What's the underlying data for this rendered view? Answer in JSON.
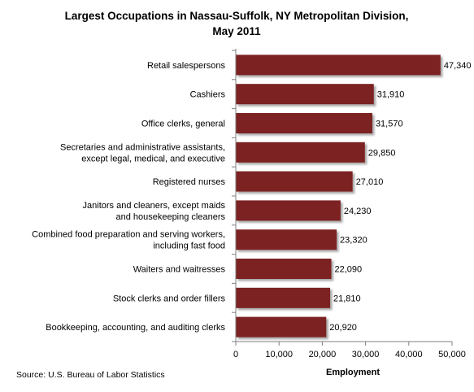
{
  "chart_data": {
    "type": "bar",
    "orientation": "horizontal",
    "title": [
      "Largest Occupations in Nassau-Suffolk, NY Metropolitan Division,",
      "May 2011"
    ],
    "xlabel": "Employment",
    "ylabel": "",
    "source": "Source: U.S. Bureau of Labor Statistics",
    "xlim": [
      0,
      50000
    ],
    "xticks": [
      {
        "value": 0,
        "label": "0"
      },
      {
        "value": 10000,
        "label": "10,000"
      },
      {
        "value": 20000,
        "label": "20,000"
      },
      {
        "value": 30000,
        "label": "30,000"
      },
      {
        "value": 40000,
        "label": "40,000"
      },
      {
        "value": 50000,
        "label": "50,000"
      }
    ],
    "grid": false,
    "bar_color": "#7b2222",
    "categories": [
      [
        "Retail salespersons"
      ],
      [
        "Cashiers"
      ],
      [
        "Office clerks, general"
      ],
      [
        "Secretaries and administrative  assistants,",
        "except legal, medical, and executive"
      ],
      [
        "Registered nurses"
      ],
      [
        "Janitors and cleaners, except maids",
        "and housekeeping cleaners"
      ],
      [
        "Combined food preparation and serving workers,",
        "including fast food"
      ],
      [
        "Waiters and waitresses"
      ],
      [
        "Stock clerks and order fillers"
      ],
      [
        "Bookkeeping, accounting, and auditing clerks"
      ]
    ],
    "values": [
      47340,
      31910,
      31570,
      29850,
      27010,
      24230,
      23320,
      22090,
      21810,
      20920
    ],
    "value_labels": [
      "47,340",
      "31,910",
      "31,570",
      "29,850",
      "27,010",
      "24,230",
      "23,320",
      "22,090",
      "21,810",
      "20,920"
    ]
  }
}
